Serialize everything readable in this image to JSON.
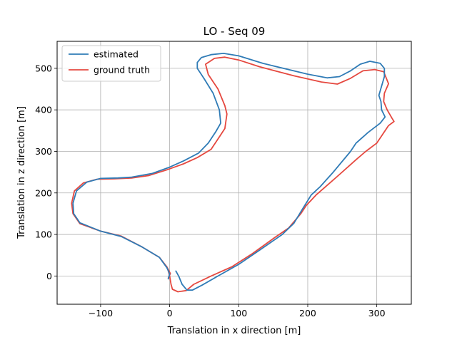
{
  "chart_data": {
    "type": "line",
    "title": "LO - Seq 09",
    "xlabel": "Translation in x direction [m]",
    "ylabel": "Translation in z direction [m]",
    "xlim": [
      -163,
      350
    ],
    "ylim": [
      -68,
      565
    ],
    "xticks": [
      -100,
      0,
      100,
      200,
      300
    ],
    "xtick_labels": [
      "−100",
      "0",
      "100",
      "200",
      "300"
    ],
    "yticks": [
      0,
      100,
      200,
      300,
      400,
      500
    ],
    "ytick_labels": [
      "0",
      "100",
      "200",
      "300",
      "400",
      "500"
    ],
    "grid": true,
    "legend_position": "top-left",
    "series": [
      {
        "name": "estimated",
        "color": "#2f7bb6",
        "points": [
          [
            9,
            12
          ],
          [
            13,
            0
          ],
          [
            18,
            -20
          ],
          [
            25,
            -34
          ],
          [
            33,
            -34
          ],
          [
            47,
            -22
          ],
          [
            70,
            0
          ],
          [
            100,
            28
          ],
          [
            130,
            62
          ],
          [
            163,
            100
          ],
          [
            180,
            127
          ],
          [
            192,
            160
          ],
          [
            205,
            195
          ],
          [
            218,
            215
          ],
          [
            237,
            250
          ],
          [
            262,
            300
          ],
          [
            270,
            320
          ],
          [
            287,
            345
          ],
          [
            305,
            368
          ],
          [
            312,
            383
          ],
          [
            307,
            400
          ],
          [
            306,
            420
          ],
          [
            303,
            435
          ],
          [
            311,
            480
          ],
          [
            311,
            500
          ],
          [
            305,
            512
          ],
          [
            290,
            517
          ],
          [
            276,
            510
          ],
          [
            262,
            494
          ],
          [
            246,
            480
          ],
          [
            228,
            477
          ],
          [
            200,
            486
          ],
          [
            135,
            512
          ],
          [
            100,
            530
          ],
          [
            78,
            536
          ],
          [
            60,
            533
          ],
          [
            46,
            526
          ],
          [
            40,
            514
          ],
          [
            40,
            500
          ],
          [
            50,
            475
          ],
          [
            63,
            440
          ],
          [
            72,
            400
          ],
          [
            74,
            368
          ],
          [
            67,
            348
          ],
          [
            56,
            320
          ],
          [
            42,
            296
          ],
          [
            20,
            277
          ],
          [
            0,
            262
          ],
          [
            -25,
            247
          ],
          [
            -55,
            238
          ],
          [
            -75,
            236
          ],
          [
            -100,
            235
          ],
          [
            -120,
            226
          ],
          [
            -135,
            205
          ],
          [
            -140,
            175
          ],
          [
            -139,
            150
          ],
          [
            -130,
            128
          ],
          [
            -100,
            108
          ],
          [
            -70,
            95
          ],
          [
            -40,
            70
          ],
          [
            -15,
            45
          ],
          [
            -4,
            20
          ],
          [
            0,
            5
          ],
          [
            -2,
            -7
          ]
        ]
      },
      {
        "name": "ground truth",
        "color": "#e5483f",
        "points": [
          [
            -2,
            12
          ],
          [
            0,
            0
          ],
          [
            2,
            -20
          ],
          [
            4,
            -32
          ],
          [
            12,
            -38
          ],
          [
            24,
            -35
          ],
          [
            35,
            -20
          ],
          [
            60,
            0
          ],
          [
            90,
            22
          ],
          [
            120,
            54
          ],
          [
            150,
            90
          ],
          [
            172,
            115
          ],
          [
            190,
            150
          ],
          [
            198,
            170
          ],
          [
            212,
            195
          ],
          [
            243,
            240
          ],
          [
            270,
            280
          ],
          [
            284,
            300
          ],
          [
            300,
            320
          ],
          [
            317,
            362
          ],
          [
            325,
            372
          ],
          [
            322,
            380
          ],
          [
            315,
            400
          ],
          [
            310,
            420
          ],
          [
            311,
            440
          ],
          [
            317,
            463
          ],
          [
            310,
            492
          ],
          [
            297,
            497
          ],
          [
            280,
            494
          ],
          [
            262,
            476
          ],
          [
            243,
            462
          ],
          [
            220,
            467
          ],
          [
            180,
            482
          ],
          [
            130,
            504
          ],
          [
            100,
            520
          ],
          [
            80,
            527
          ],
          [
            65,
            524
          ],
          [
            52,
            510
          ],
          [
            56,
            485
          ],
          [
            70,
            450
          ],
          [
            80,
            410
          ],
          [
            83,
            390
          ],
          [
            80,
            355
          ],
          [
            70,
            330
          ],
          [
            60,
            305
          ],
          [
            40,
            285
          ],
          [
            20,
            270
          ],
          [
            -5,
            255
          ],
          [
            -30,
            242
          ],
          [
            -55,
            236
          ],
          [
            -80,
            234
          ],
          [
            -105,
            233
          ],
          [
            -125,
            224
          ],
          [
            -138,
            205
          ],
          [
            -142,
            175
          ],
          [
            -140,
            150
          ],
          [
            -130,
            126
          ],
          [
            -100,
            108
          ],
          [
            -70,
            96
          ],
          [
            -40,
            70
          ],
          [
            -15,
            45
          ],
          [
            -4,
            22
          ],
          [
            1,
            6
          ],
          [
            -2,
            -5
          ]
        ]
      }
    ]
  }
}
